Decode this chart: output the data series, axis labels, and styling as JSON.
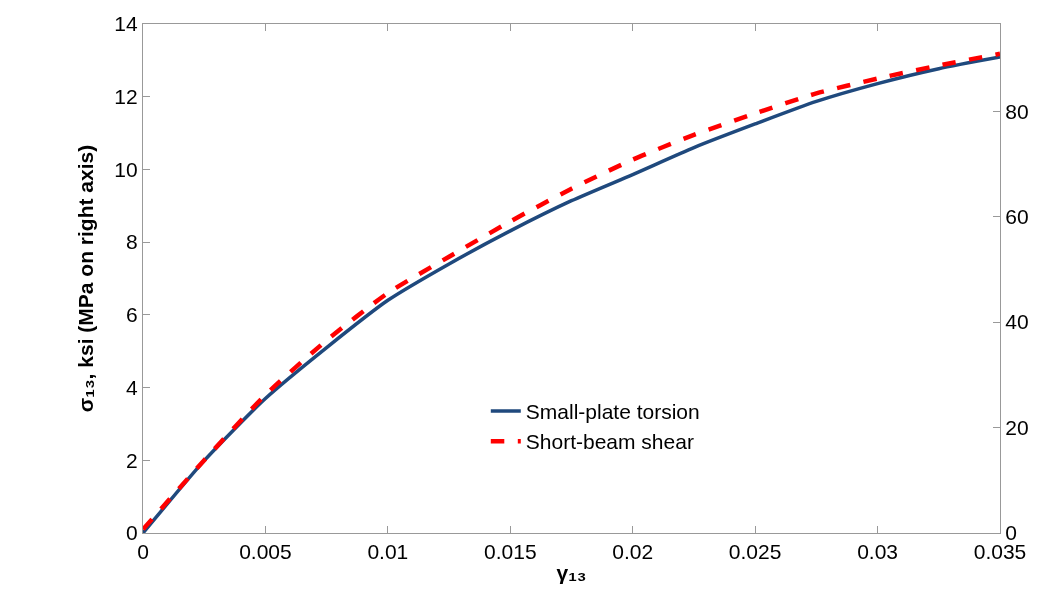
{
  "chart_data": {
    "type": "line",
    "xlabel": "γ₁₃",
    "ylabel": "σ₁₃, ksi (MPa on right axis)",
    "xlim": [
      0,
      0.035
    ],
    "xticks": [
      0,
      0.005,
      0.01,
      0.015,
      0.02,
      0.025,
      0.03,
      0.035
    ],
    "ylim": [
      0,
      14
    ],
    "yticks": [
      0,
      2,
      4,
      6,
      8,
      10,
      12,
      14
    ],
    "y2lim": [
      0,
      96.53
    ],
    "y2ticks": [
      0,
      20,
      40,
      60,
      80
    ],
    "x": [
      0,
      0.0025,
      0.005,
      0.0075,
      0.01,
      0.0125,
      0.015,
      0.0175,
      0.02,
      0.0225,
      0.025,
      0.0275,
      0.03,
      0.0325,
      0.035
    ],
    "series": [
      {
        "name": "Small-plate torsion",
        "color": "#1f497d",
        "line_style": "solid",
        "values": [
          0,
          1.99,
          3.7,
          5.1,
          6.4,
          7.4,
          8.31,
          9.14,
          9.86,
          10.6,
          11.25,
          11.87,
          12.36,
          12.77,
          13.09
        ]
      },
      {
        "name": "Short-beam shear",
        "color": "#ff0000",
        "line_style": "dashed",
        "values": [
          0.1,
          2.0,
          3.8,
          5.3,
          6.6,
          7.6,
          8.57,
          9.47,
          10.27,
          10.95,
          11.54,
          12.09,
          12.5,
          12.86,
          13.18
        ]
      }
    ],
    "legend": "bottom",
    "marker": "none"
  }
}
